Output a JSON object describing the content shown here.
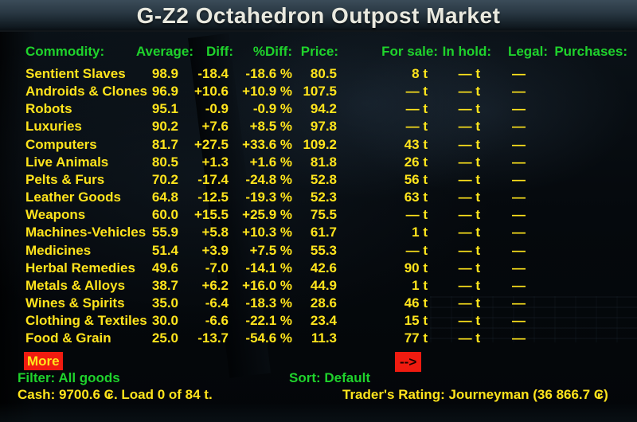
{
  "title": "G-Z2 Octahedron Outpost Market",
  "market": {
    "headers": {
      "commodity": "Commodity:",
      "average": "Average:",
      "diff": "Diff:",
      "pdiff": "%Diff:",
      "price": "Price:",
      "forsale": "For sale:",
      "inhold": "In hold:",
      "legal": "Legal:",
      "purchases": "Purchases:"
    },
    "rows": [
      {
        "name": "Sentient Slaves",
        "avg": "98.9",
        "diff": "-18.4",
        "pdiff": "-18.6 %",
        "price": "80.5",
        "forsale": "8 t",
        "inhold": "— t",
        "legal": "—",
        "purchases": ""
      },
      {
        "name": "Androids & Clones",
        "avg": "96.9",
        "diff": "+10.6",
        "pdiff": "+10.9 %",
        "price": "107.5",
        "forsale": "— t",
        "inhold": "— t",
        "legal": "—",
        "purchases": ""
      },
      {
        "name": "Robots",
        "avg": "95.1",
        "diff": "-0.9",
        "pdiff": "-0.9 %",
        "price": "94.2",
        "forsale": "— t",
        "inhold": "— t",
        "legal": "—",
        "purchases": ""
      },
      {
        "name": "Luxuries",
        "avg": "90.2",
        "diff": "+7.6",
        "pdiff": "+8.5 %",
        "price": "97.8",
        "forsale": "— t",
        "inhold": "— t",
        "legal": "—",
        "purchases": ""
      },
      {
        "name": "Computers",
        "avg": "81.7",
        "diff": "+27.5",
        "pdiff": "+33.6 %",
        "price": "109.2",
        "forsale": "43 t",
        "inhold": "— t",
        "legal": "—",
        "purchases": ""
      },
      {
        "name": "Live Animals",
        "avg": "80.5",
        "diff": "+1.3",
        "pdiff": "+1.6 %",
        "price": "81.8",
        "forsale": "26 t",
        "inhold": "— t",
        "legal": "—",
        "purchases": ""
      },
      {
        "name": "Pelts & Furs",
        "avg": "70.2",
        "diff": "-17.4",
        "pdiff": "-24.8 %",
        "price": "52.8",
        "forsale": "56 t",
        "inhold": "— t",
        "legal": "—",
        "purchases": ""
      },
      {
        "name": "Leather Goods",
        "avg": "64.8",
        "diff": "-12.5",
        "pdiff": "-19.3 %",
        "price": "52.3",
        "forsale": "63 t",
        "inhold": "— t",
        "legal": "—",
        "purchases": ""
      },
      {
        "name": "Weapons",
        "avg": "60.0",
        "diff": "+15.5",
        "pdiff": "+25.9 %",
        "price": "75.5",
        "forsale": "— t",
        "inhold": "— t",
        "legal": "—",
        "purchases": ""
      },
      {
        "name": "Machines-Vehicles",
        "avg": "55.9",
        "diff": "+5.8",
        "pdiff": "+10.3 %",
        "price": "61.7",
        "forsale": "1 t",
        "inhold": "— t",
        "legal": "—",
        "purchases": ""
      },
      {
        "name": "Medicines",
        "avg": "51.4",
        "diff": "+3.9",
        "pdiff": "+7.5 %",
        "price": "55.3",
        "forsale": "— t",
        "inhold": "— t",
        "legal": "—",
        "purchases": ""
      },
      {
        "name": "Herbal Remedies",
        "avg": "49.6",
        "diff": "-7.0",
        "pdiff": "-14.1 %",
        "price": "42.6",
        "forsale": "90 t",
        "inhold": "— t",
        "legal": "—",
        "purchases": ""
      },
      {
        "name": "Metals & Alloys",
        "avg": "38.7",
        "diff": "+6.2",
        "pdiff": "+16.0 %",
        "price": "44.9",
        "forsale": "1 t",
        "inhold": "— t",
        "legal": "—",
        "purchases": ""
      },
      {
        "name": "Wines & Spirits",
        "avg": "35.0",
        "diff": "-6.4",
        "pdiff": "-18.3 %",
        "price": "28.6",
        "forsale": "46 t",
        "inhold": "— t",
        "legal": "—",
        "purchases": ""
      },
      {
        "name": "Clothing & Textiles",
        "avg": "30.0",
        "diff": "-6.6",
        "pdiff": "-22.1 %",
        "price": "23.4",
        "forsale": "15 t",
        "inhold": "— t",
        "legal": "—",
        "purchases": ""
      },
      {
        "name": "Food & Grain",
        "avg": "25.0",
        "diff": "-13.7",
        "pdiff": "-54.6 %",
        "price": "11.3",
        "forsale": "77 t",
        "inhold": "— t",
        "legal": "—",
        "purchases": ""
      }
    ],
    "more_label": "More",
    "next_page_label": "-->"
  },
  "controls": {
    "filter": "Filter: All goods",
    "sort": "Sort: Default"
  },
  "status": {
    "cash_load": "Cash: 9700.6 ₢. Load 0 of 84 t.",
    "rating": "Trader's Rating: Journeyman (36 866.7 ₢)"
  },
  "colors": {
    "header_green": "#1fd32c",
    "row_yellow": "#ffe41c",
    "highlight_red": "#f01b10",
    "title_text": "#e9e9df",
    "background": "#05090d"
  }
}
